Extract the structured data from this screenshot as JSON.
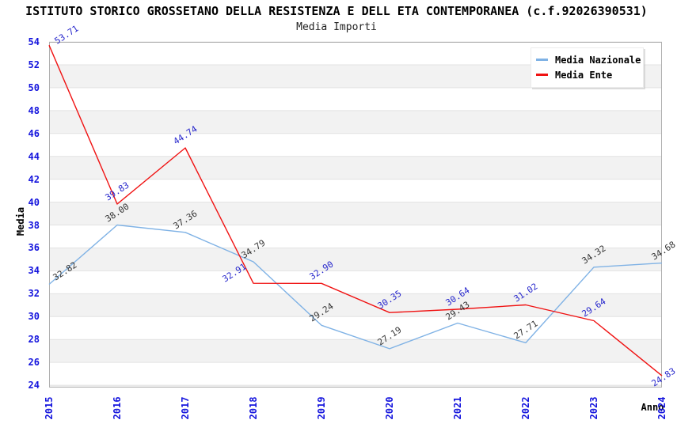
{
  "title": "ISTITUTO STORICO GROSSETANO DELLA RESISTENZA E DELL ETA CONTEMPORANEA (c.f.92026390531)",
  "subtitle": "Media Importi",
  "chart_data": {
    "type": "line",
    "x": [
      2015,
      2016,
      2017,
      2018,
      2019,
      2020,
      2021,
      2022,
      2023,
      2024
    ],
    "series": [
      {
        "name": "Media Nazionale",
        "color": "#7fb2e5",
        "label_color": "#333333",
        "values": [
          32.82,
          38.0,
          37.36,
          34.79,
          29.24,
          27.19,
          29.43,
          27.71,
          34.32,
          34.68
        ]
      },
      {
        "name": "Media Ente",
        "color": "#f01212",
        "label_color": "#2727cc",
        "values": [
          53.71,
          39.83,
          44.74,
          32.91,
          32.9,
          30.35,
          30.64,
          31.02,
          29.64,
          24.83
        ]
      }
    ],
    "title": "ISTITUTO STORICO GROSSETANO DELLA RESISTENZA E DELL ETA CONTEMPORANEA (c.f.92026390531)",
    "subtitle": "Media Importi",
    "xlabel": "Anno",
    "ylabel": "Media",
    "ylim": [
      24,
      54
    ],
    "ytick_step": 2,
    "yticks": [
      24,
      26,
      28,
      30,
      32,
      34,
      36,
      38,
      40,
      42,
      44,
      46,
      48,
      50,
      52,
      54
    ],
    "tick_color": "#1414dd",
    "band_color": "#f2f2f2",
    "gridline_color": "#e2e2e2",
    "border_color": "#b0b0b0",
    "grid": "horizontal-bands",
    "legend_position": "top-right"
  }
}
